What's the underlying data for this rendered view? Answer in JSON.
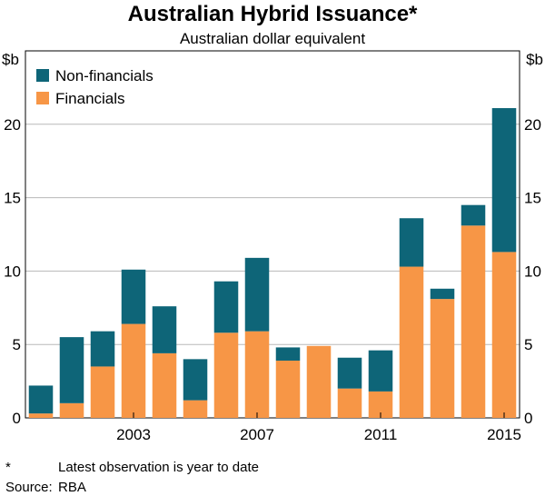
{
  "chart_data": {
    "type": "bar",
    "stacked": true,
    "title": "Australian Hybrid Issuance*",
    "subtitle": "Australian dollar equivalent",
    "ylabel_left": "$b",
    "ylabel_right": "$b",
    "ylim": [
      0,
      25
    ],
    "yticks": [
      0,
      5,
      10,
      15,
      20
    ],
    "x": [
      2000,
      2001,
      2002,
      2003,
      2004,
      2005,
      2006,
      2007,
      2008,
      2009,
      2010,
      2011,
      2012,
      2013,
      2014,
      2015
    ],
    "xtick_labels": [
      "2003",
      "2007",
      "2011",
      "2015"
    ],
    "xtick_years": [
      2003,
      2007,
      2011,
      2015
    ],
    "series": [
      {
        "name": "Financials",
        "color": "#F79646",
        "values": [
          0.3,
          1.0,
          3.5,
          6.4,
          4.4,
          1.2,
          5.8,
          5.9,
          3.9,
          4.9,
          2.0,
          1.8,
          10.3,
          8.1,
          13.1,
          11.3
        ]
      },
      {
        "name": "Non-financials",
        "color": "#0E6578",
        "values": [
          1.9,
          4.5,
          2.4,
          3.7,
          3.2,
          2.8,
          3.5,
          5.0,
          0.9,
          0.0,
          2.1,
          2.8,
          3.3,
          0.7,
          1.4,
          9.8
        ]
      }
    ],
    "legend": {
      "position": "top-left",
      "entries": [
        "Non-financials",
        "Financials"
      ]
    },
    "grid": true
  },
  "footnote": {
    "marker": "*",
    "text": "Latest observation is year to date"
  },
  "source": {
    "label": "Source:",
    "text": "RBA"
  }
}
